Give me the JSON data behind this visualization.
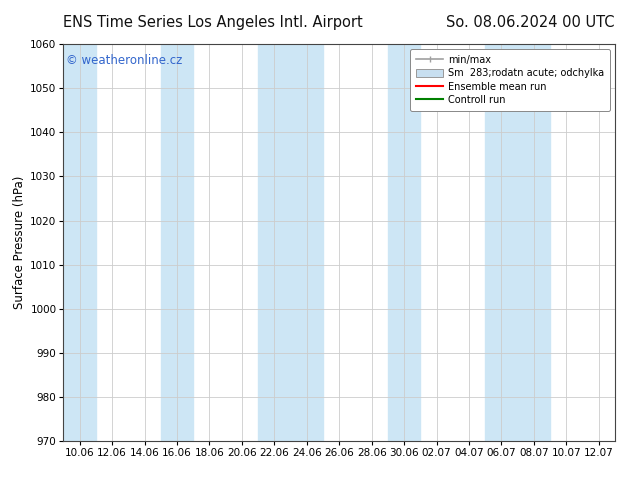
{
  "title_left": "ENS Time Series Los Angeles Intl. Airport",
  "title_right": "So. 08.06.2024 00 UTC",
  "ylabel": "Surface Pressure (hPa)",
  "ylim": [
    970,
    1060
  ],
  "yticks": [
    970,
    980,
    990,
    1000,
    1010,
    1020,
    1030,
    1040,
    1050,
    1060
  ],
  "xtick_labels": [
    "10.06",
    "12.06",
    "14.06",
    "16.06",
    "18.06",
    "20.06",
    "22.06",
    "24.06",
    "26.06",
    "28.06",
    "30.06",
    "02.07",
    "04.07",
    "06.07",
    "08.07",
    "10.07",
    "12.07"
  ],
  "watermark": "© weatheronline.cz",
  "legend_entries": [
    "min/max",
    "Sm  283;rodatn acute; odchylka",
    "Ensemble mean run",
    "Controll run"
  ],
  "legend_colors": [
    "#a0a0a0",
    "#c8dff0",
    "#ff0000",
    "#008000"
  ],
  "shaded_indices": [
    0,
    3,
    6,
    7,
    10,
    13,
    14
  ],
  "shaded_color": "#cde6f5",
  "bg_color": "#ffffff",
  "plot_bg_color": "#ffffff",
  "grid_color": "#cccccc",
  "title_fontsize": 10.5,
  "label_fontsize": 8.5,
  "tick_fontsize": 7.5,
  "watermark_color": "#3366cc",
  "watermark_fontsize": 8.5
}
